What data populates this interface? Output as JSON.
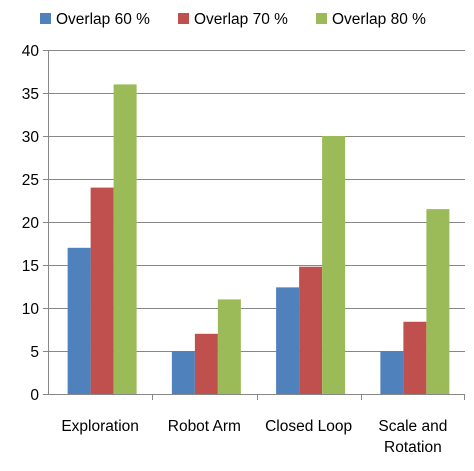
{
  "chart_data": {
    "type": "bar",
    "categories": [
      [
        "Exploration"
      ],
      [
        "Robot Arm"
      ],
      [
        "Closed Loop"
      ],
      [
        "Scale and",
        "Rotation"
      ]
    ],
    "series": [
      {
        "name": "Overlap 60 %",
        "color": "#4F81BD",
        "values": [
          17,
          5,
          12.4,
          5
        ]
      },
      {
        "name": "Overlap 70 %",
        "color": "#C0504D",
        "values": [
          24,
          7,
          14.8,
          8.4
        ]
      },
      {
        "name": "Overlap 80 %",
        "color": "#9BBB59",
        "values": [
          36,
          11,
          30,
          21.5
        ]
      }
    ],
    "yticks": [
      "0",
      "5",
      "10",
      "15",
      "20",
      "25",
      "30",
      "35",
      "40"
    ],
    "ylim": [
      0,
      40
    ],
    "grid": true,
    "legend_position": "top"
  }
}
